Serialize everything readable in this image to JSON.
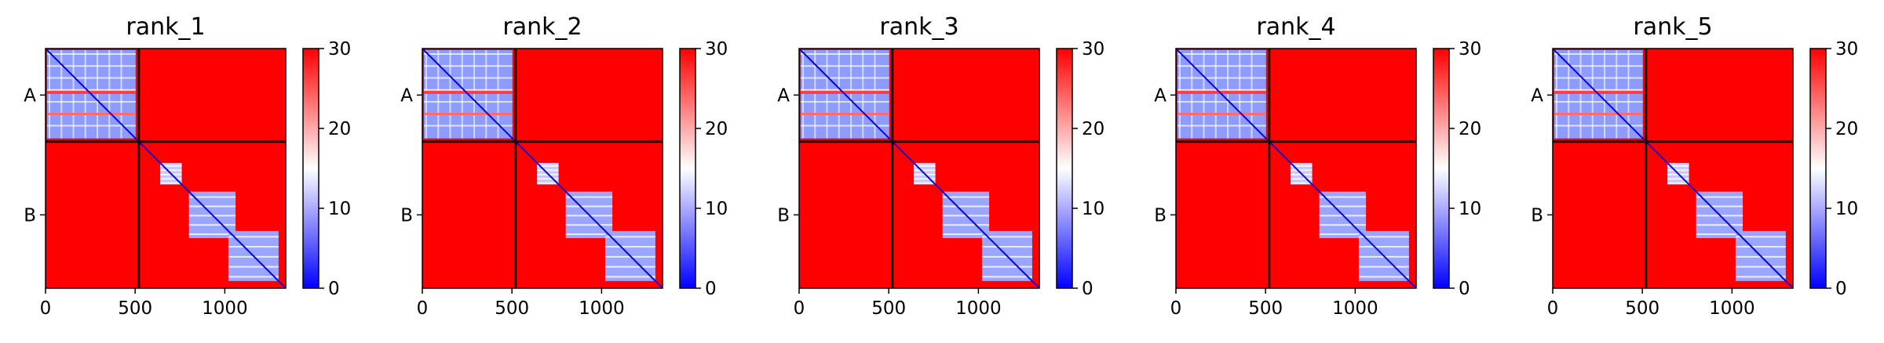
{
  "chart_data": [
    {
      "type": "heatmap",
      "title": "rank_1",
      "chains": [
        "A",
        "B"
      ],
      "chain_boundary": 520,
      "xticks": [
        0,
        500,
        1000
      ],
      "xlim": [
        0,
        1340
      ],
      "colorbar": {
        "ticks": [
          0,
          10,
          20,
          30
        ],
        "range": [
          0,
          30
        ],
        "colors": [
          "#0000ff",
          "#ffffff",
          "#ff0000"
        ]
      }
    },
    {
      "type": "heatmap",
      "title": "rank_2",
      "chains": [
        "A",
        "B"
      ],
      "chain_boundary": 520,
      "xticks": [
        0,
        500,
        1000
      ],
      "xlim": [
        0,
        1340
      ],
      "colorbar": {
        "ticks": [
          0,
          10,
          20,
          30
        ],
        "range": [
          0,
          30
        ],
        "colors": [
          "#0000ff",
          "#ffffff",
          "#ff0000"
        ]
      }
    },
    {
      "type": "heatmap",
      "title": "rank_3",
      "chains": [
        "A",
        "B"
      ],
      "chain_boundary": 520,
      "xticks": [
        0,
        500,
        1000
      ],
      "xlim": [
        0,
        1340
      ],
      "colorbar": {
        "ticks": [
          0,
          10,
          20,
          30
        ],
        "range": [
          0,
          30
        ],
        "colors": [
          "#0000ff",
          "#ffffff",
          "#ff0000"
        ]
      }
    },
    {
      "type": "heatmap",
      "title": "rank_4",
      "chains": [
        "A",
        "B"
      ],
      "chain_boundary": 520,
      "xticks": [
        0,
        500,
        1000
      ],
      "xlim": [
        0,
        1340
      ],
      "colorbar": {
        "ticks": [
          0,
          10,
          20,
          30
        ],
        "range": [
          0,
          30
        ],
        "colors": [
          "#0000ff",
          "#ffffff",
          "#ff0000"
        ]
      }
    },
    {
      "type": "heatmap",
      "title": "rank_5",
      "chains": [
        "A",
        "B"
      ],
      "chain_boundary": 520,
      "xticks": [
        0,
        500,
        1000
      ],
      "xlim": [
        0,
        1340
      ],
      "colorbar": {
        "ticks": [
          0,
          10,
          20,
          30
        ],
        "range": [
          0,
          30
        ],
        "colors": [
          "#0000ff",
          "#ffffff",
          "#ff0000"
        ]
      }
    }
  ]
}
